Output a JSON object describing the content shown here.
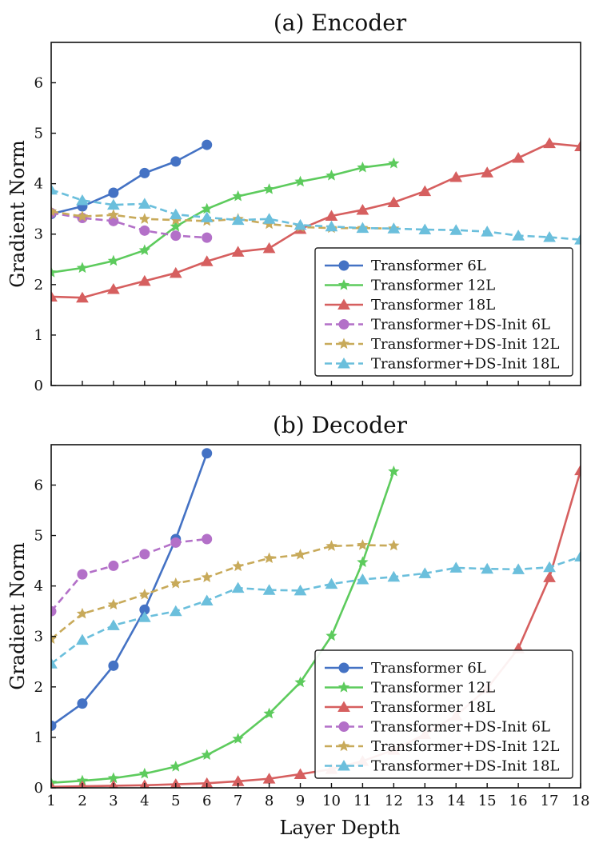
{
  "chart_data": [
    {
      "type": "line",
      "title": "(a) Encoder",
      "xlabel": "",
      "ylabel": "Gradient Norm",
      "xlim": [
        1,
        18
      ],
      "ylim": [
        0,
        6.8
      ],
      "yticks": [
        "0",
        "1",
        "2",
        "3",
        "4",
        "5",
        "6"
      ],
      "xticks": [
        "",
        "",
        "",
        "",
        "",
        "",
        "",
        "",
        "",
        "",
        "",
        "",
        "",
        "",
        "",
        "",
        "",
        ""
      ],
      "legend": "lower-right",
      "series": [
        {
          "name": "Transformer 6L",
          "color": "#4472C4",
          "marker": "circle",
          "dashed": false,
          "x": [
            1,
            2,
            3,
            4,
            5,
            6
          ],
          "values": [
            3.4,
            3.55,
            3.82,
            4.21,
            4.44,
            4.77
          ]
        },
        {
          "name": "Transformer 12L",
          "color": "#5DCB5D",
          "marker": "star",
          "dashed": false,
          "x": [
            1,
            2,
            3,
            4,
            5,
            6,
            7,
            8,
            9,
            10,
            11,
            12
          ],
          "values": [
            2.24,
            2.33,
            2.47,
            2.68,
            3.15,
            3.5,
            3.75,
            3.89,
            4.04,
            4.16,
            4.32,
            4.4
          ]
        },
        {
          "name": "Transformer 18L",
          "color": "#D65F5F",
          "marker": "triangle",
          "dashed": false,
          "x": [
            1,
            2,
            3,
            4,
            5,
            6,
            7,
            8,
            9,
            10,
            11,
            12,
            13,
            14,
            15,
            16,
            17,
            18
          ],
          "values": [
            1.76,
            1.74,
            1.91,
            2.07,
            2.23,
            2.46,
            2.65,
            2.72,
            3.1,
            3.36,
            3.48,
            3.63,
            3.85,
            4.13,
            4.22,
            4.51,
            4.8,
            4.74
          ]
        },
        {
          "name": "Transformer+DS-Init 6L",
          "color": "#B370C8",
          "marker": "circle",
          "dashed": true,
          "x": [
            1,
            2,
            3,
            4,
            5,
            6
          ],
          "values": [
            3.42,
            3.32,
            3.26,
            3.07,
            2.97,
            2.93
          ]
        },
        {
          "name": "Transformer+DS-Init 12L",
          "color": "#C8AA5A",
          "marker": "star",
          "dashed": true,
          "x": [
            1,
            2,
            3,
            4,
            5,
            6,
            7,
            8,
            9,
            10,
            11,
            12
          ],
          "values": [
            3.45,
            3.35,
            3.38,
            3.3,
            3.28,
            3.26,
            3.3,
            3.2,
            3.14,
            3.12,
            3.12,
            3.11
          ]
        },
        {
          "name": "Transformer+DS-Init 18L",
          "color": "#6BBFDC",
          "marker": "triangle",
          "dashed": true,
          "x": [
            1,
            2,
            3,
            4,
            5,
            6,
            7,
            8,
            9,
            10,
            11,
            12,
            13,
            14,
            15,
            16,
            17,
            18
          ],
          "values": [
            3.88,
            3.67,
            3.58,
            3.6,
            3.39,
            3.33,
            3.28,
            3.3,
            3.18,
            3.15,
            3.12,
            3.11,
            3.09,
            3.08,
            3.05,
            2.97,
            2.94,
            2.89
          ]
        }
      ]
    },
    {
      "type": "line",
      "title": "(b) Decoder",
      "xlabel": "Layer Depth",
      "ylabel": "Gradient Norm",
      "xlim": [
        1,
        18
      ],
      "ylim": [
        0,
        6.8
      ],
      "yticks": [
        "0",
        "1",
        "2",
        "3",
        "4",
        "5",
        "6"
      ],
      "xticks": [
        "1",
        "2",
        "3",
        "4",
        "5",
        "6",
        "7",
        "8",
        "9",
        "10",
        "11",
        "12",
        "13",
        "14",
        "15",
        "16",
        "17",
        "18"
      ],
      "legend": "lower-right",
      "series": [
        {
          "name": "Transformer 6L",
          "color": "#4472C4",
          "marker": "circle",
          "dashed": false,
          "x": [
            1,
            2,
            3,
            4,
            5,
            6
          ],
          "values": [
            1.23,
            1.67,
            2.42,
            3.53,
            4.93,
            6.63
          ]
        },
        {
          "name": "Transformer 12L",
          "color": "#5DCB5D",
          "marker": "star",
          "dashed": false,
          "x": [
            1,
            2,
            3,
            4,
            5,
            6,
            7,
            8,
            9,
            10,
            11,
            12
          ],
          "values": [
            0.1,
            0.14,
            0.19,
            0.28,
            0.42,
            0.65,
            0.97,
            1.47,
            2.09,
            3.01,
            4.47,
            6.27
          ]
        },
        {
          "name": "Transformer 18L",
          "color": "#D65F5F",
          "marker": "triangle",
          "dashed": false,
          "x": [
            1,
            2,
            3,
            4,
            5,
            6,
            7,
            8,
            9,
            10,
            11,
            12,
            13,
            14,
            15,
            16,
            17,
            18
          ],
          "values": [
            0.02,
            0.03,
            0.04,
            0.05,
            0.07,
            0.09,
            0.13,
            0.18,
            0.27,
            0.37,
            0.53,
            0.75,
            1.06,
            1.43,
            1.97,
            2.76,
            4.17,
            6.29
          ]
        },
        {
          "name": "Transformer+DS-Init 6L",
          "color": "#B370C8",
          "marker": "circle",
          "dashed": true,
          "x": [
            1,
            2,
            3,
            4,
            5,
            6
          ],
          "values": [
            3.5,
            4.23,
            4.4,
            4.63,
            4.86,
            4.93
          ]
        },
        {
          "name": "Transformer+DS-Init 12L",
          "color": "#C8AA5A",
          "marker": "star",
          "dashed": true,
          "x": [
            1,
            2,
            3,
            4,
            5,
            6,
            7,
            8,
            9,
            10,
            11,
            12
          ],
          "values": [
            2.95,
            3.45,
            3.63,
            3.83,
            4.05,
            4.17,
            4.39,
            4.55,
            4.62,
            4.79,
            4.81,
            4.8
          ]
        },
        {
          "name": "Transformer+DS-Init 18L",
          "color": "#6BBFDC",
          "marker": "triangle",
          "dashed": true,
          "x": [
            1,
            2,
            3,
            4,
            5,
            6,
            7,
            8,
            9,
            10,
            11,
            12,
            13,
            14,
            15,
            16,
            17,
            18
          ],
          "values": [
            2.46,
            2.93,
            3.22,
            3.38,
            3.5,
            3.71,
            3.96,
            3.92,
            3.91,
            4.04,
            4.13,
            4.18,
            4.25,
            4.36,
            4.34,
            4.33,
            4.37,
            4.58
          ]
        }
      ]
    }
  ]
}
